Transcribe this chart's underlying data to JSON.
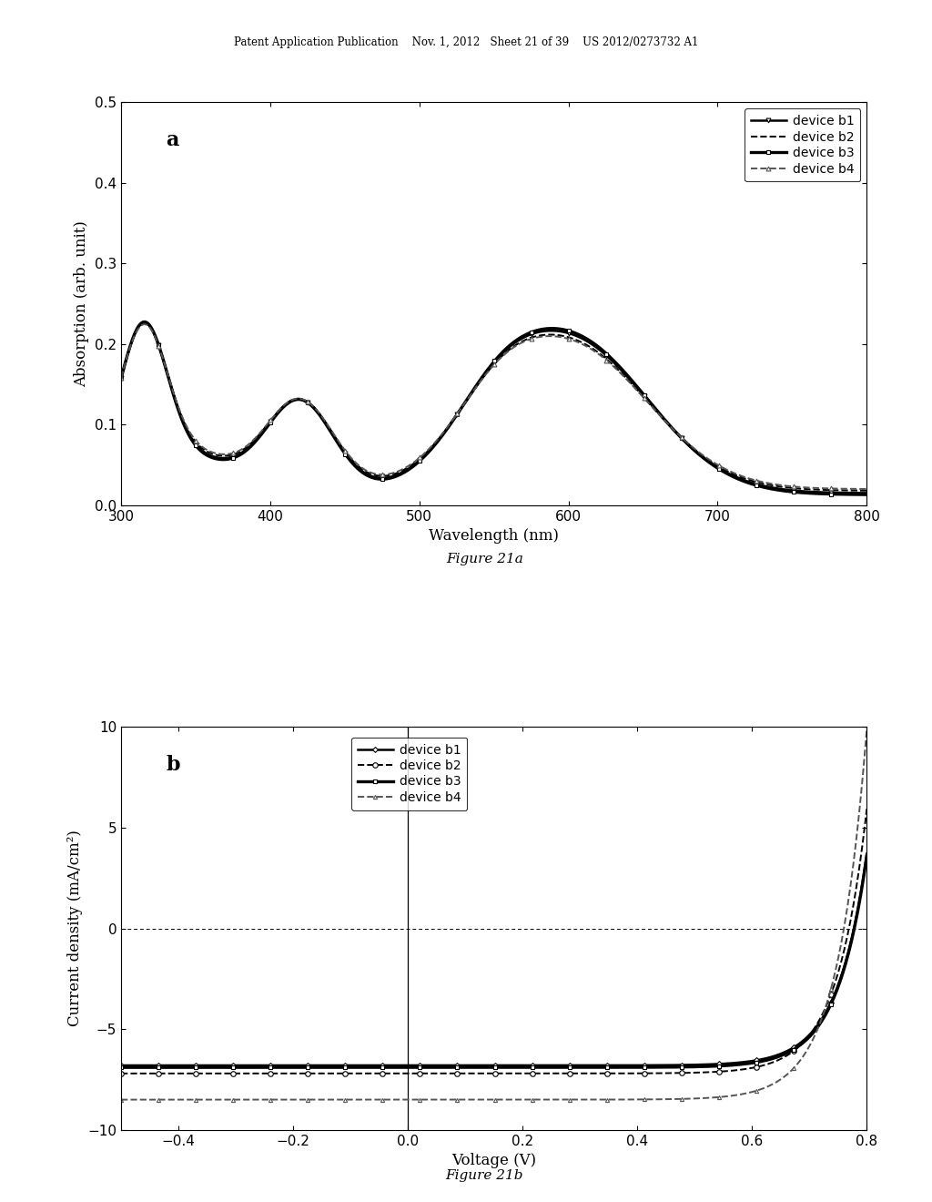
{
  "fig_width": 10.24,
  "fig_height": 13.2,
  "background_color": "#ffffff",
  "header_text": "Patent Application Publication    Nov. 1, 2012   Sheet 21 of 39    US 2012/0273732 A1",
  "plot_a": {
    "label": "a",
    "xlabel": "Wavelength (nm)",
    "ylabel": "Absorption (arb. unit)",
    "xlim": [
      300,
      800
    ],
    "ylim": [
      0,
      0.5
    ],
    "xticks": [
      300,
      400,
      500,
      600,
      700,
      800
    ],
    "yticks": [
      0,
      0.1,
      0.2,
      0.3,
      0.4,
      0.5
    ],
    "caption": "Figure 21a",
    "legend_labels": [
      "device b1",
      "device b2",
      "device b3",
      "device b4"
    ]
  },
  "plot_b": {
    "label": "b",
    "xlabel": "Voltage (V)",
    "ylabel": "Current density (mA/cm²)",
    "xlim": [
      -0.5,
      0.8
    ],
    "ylim": [
      -10,
      10
    ],
    "xticks": [
      -0.4,
      -0.2,
      0.0,
      0.2,
      0.4,
      0.6,
      0.8
    ],
    "yticks": [
      -10,
      -5,
      0,
      5,
      10
    ],
    "caption": "Figure 21b",
    "legend_labels": [
      "device b1",
      "device b2",
      "device b3",
      "device b4"
    ]
  }
}
